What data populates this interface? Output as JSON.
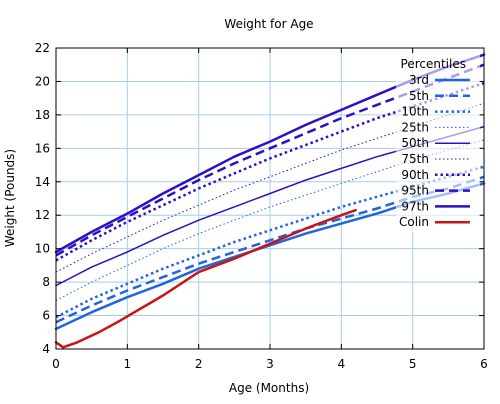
{
  "chart_data": {
    "type": "line",
    "title": "Weight for Age",
    "xlabel": "Age (Months)",
    "ylabel": "Weight (Pounds)",
    "xlim": [
      0,
      6
    ],
    "ylim": [
      4,
      22
    ],
    "xticks": [
      0,
      1,
      2,
      3,
      4,
      5,
      6
    ],
    "yticks": [
      4,
      6,
      8,
      10,
      12,
      14,
      16,
      18,
      20,
      22
    ],
    "grid": true,
    "legend_title": "Percentiles",
    "legend_position": "top-right",
    "series": [
      {
        "name": "3rd",
        "color": "#1f64e0",
        "style": "solid",
        "width": 2.5,
        "x": [
          0,
          0.5,
          1,
          1.5,
          2,
          2.5,
          3,
          3.5,
          4,
          4.5,
          5,
          5.5,
          6
        ],
        "y": [
          5.2,
          6.2,
          7.1,
          7.9,
          8.8,
          9.5,
          10.2,
          10.9,
          11.5,
          12.1,
          12.8,
          13.3,
          13.9
        ]
      },
      {
        "name": "5th",
        "color": "#1f64e0",
        "style": "dashed",
        "width": 2.5,
        "x": [
          0,
          0.5,
          1,
          1.5,
          2,
          2.5,
          3,
          3.5,
          4,
          4.5,
          5,
          5.5,
          6
        ],
        "y": [
          5.6,
          6.6,
          7.5,
          8.3,
          9.1,
          9.8,
          10.5,
          11.2,
          11.8,
          12.4,
          13.1,
          13.6,
          14.3
        ]
      },
      {
        "name": "10th",
        "color": "#1f64e0",
        "style": "dotted",
        "width": 2.5,
        "x": [
          0,
          0.5,
          1,
          1.5,
          2,
          2.5,
          3,
          3.5,
          4,
          4.5,
          5,
          5.5,
          6
        ],
        "y": [
          5.9,
          7.0,
          7.9,
          8.8,
          9.6,
          10.4,
          11.1,
          11.8,
          12.5,
          13.1,
          13.7,
          14.3,
          14.9
        ]
      },
      {
        "name": "25th",
        "color": "#1f64e0",
        "style": "dotted",
        "width": 1,
        "x": [
          0,
          0.5,
          1,
          1.5,
          2,
          2.5,
          3,
          3.5,
          4,
          4.5,
          5,
          5.5,
          6
        ],
        "y": [
          6.9,
          8.0,
          9.0,
          10.0,
          10.9,
          11.7,
          12.5,
          13.2,
          13.9,
          14.6,
          15.3,
          15.9,
          16.5
        ]
      },
      {
        "name": "50th",
        "color": "#2a10c8",
        "style": "solid",
        "width": 1.5,
        "x": [
          0,
          0.5,
          1,
          1.5,
          2,
          2.5,
          3,
          3.5,
          4,
          4.5,
          5,
          5.5,
          6
        ],
        "y": [
          7.8,
          8.9,
          9.8,
          10.8,
          11.7,
          12.5,
          13.3,
          14.1,
          14.8,
          15.5,
          16.1,
          16.7,
          17.3
        ]
      },
      {
        "name": "75th",
        "color": "#2a10c8",
        "style": "dotted",
        "width": 1,
        "x": [
          0,
          0.5,
          1,
          1.5,
          2,
          2.5,
          3,
          3.5,
          4,
          4.5,
          5,
          5.5,
          6
        ],
        "y": [
          8.6,
          9.7,
          10.7,
          11.7,
          12.6,
          13.5,
          14.3,
          15.1,
          15.9,
          16.6,
          17.3,
          18.0,
          18.7
        ]
      },
      {
        "name": "90th",
        "color": "#2a10c8",
        "style": "dotted",
        "width": 2.5,
        "x": [
          0,
          0.5,
          1,
          1.5,
          2,
          2.5,
          3,
          3.5,
          4,
          4.5,
          5,
          5.5,
          6
        ],
        "y": [
          9.3,
          10.5,
          11.6,
          12.6,
          13.6,
          14.5,
          15.4,
          16.2,
          17.0,
          17.8,
          18.5,
          19.2,
          19.9
        ]
      },
      {
        "name": "95th",
        "color": "#2a10c8",
        "style": "dashed",
        "width": 2.5,
        "x": [
          0,
          0.5,
          1,
          1.5,
          2,
          2.5,
          3,
          3.5,
          4,
          4.5,
          5,
          5.5,
          6
        ],
        "y": [
          9.6,
          10.8,
          11.9,
          13.0,
          14.1,
          15.1,
          16.0,
          16.9,
          17.8,
          18.6,
          19.4,
          20.2,
          21.0
        ]
      },
      {
        "name": "97th",
        "color": "#2a10c8",
        "style": "solid",
        "width": 2.5,
        "x": [
          0,
          0.5,
          1,
          1.5,
          2,
          2.5,
          3,
          3.5,
          4,
          4.5,
          5,
          5.5,
          6
        ],
        "y": [
          9.8,
          11.0,
          12.1,
          13.3,
          14.4,
          15.5,
          16.4,
          17.4,
          18.3,
          19.2,
          20.1,
          20.9,
          21.6
        ]
      },
      {
        "name": "Colin",
        "color": "#c81414",
        "style": "solid",
        "width": 2.5,
        "x": [
          0,
          0.1,
          0.3,
          0.6,
          0.9,
          1.5,
          2.0,
          2.5,
          3.0,
          3.5,
          4.0,
          4.2
        ],
        "y": [
          4.4,
          4.1,
          4.4,
          5.0,
          5.7,
          7.2,
          8.6,
          9.4,
          10.3,
          11.2,
          12.0,
          12.3
        ]
      }
    ]
  }
}
